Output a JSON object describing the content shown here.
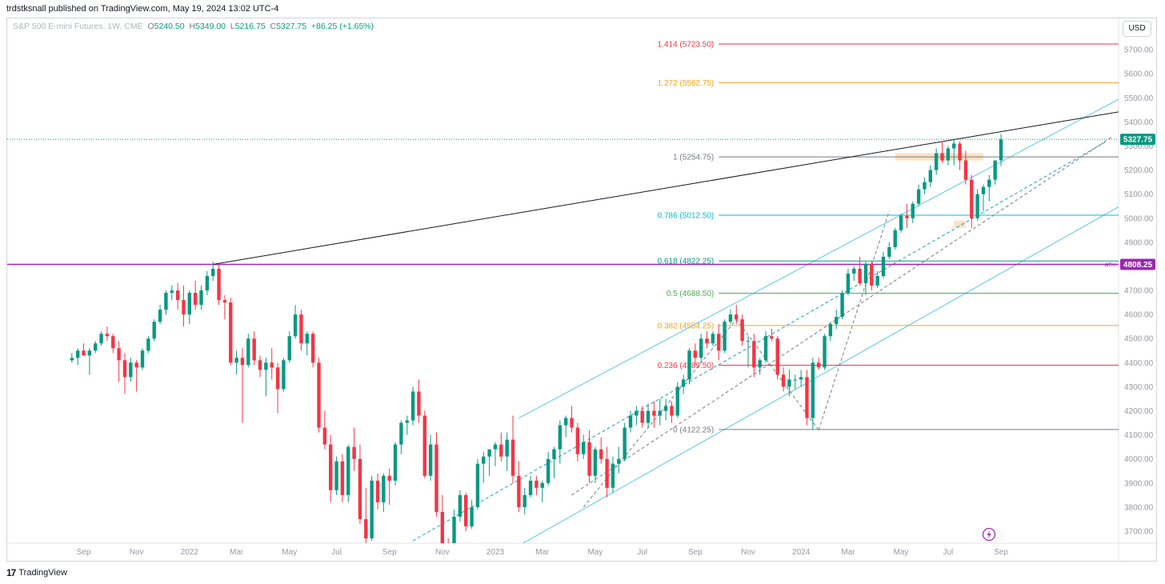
{
  "header": {
    "publisher_line": "trdstksnall published on TradingView.com, May 19, 2024 13:02 UTC-4"
  },
  "legend": {
    "symbol": "S&P 500 E-mini Futures, 1W, CME",
    "open_key": "O",
    "open": "5240.50",
    "high_key": "H",
    "high": "5349.00",
    "low_key": "L",
    "low": "5216.75",
    "close_key": "C",
    "close": "5327.75",
    "change": "+86.25 (+1.65%)"
  },
  "currency_button": "USD",
  "footer": {
    "logo_glyph": "17",
    "brand": "TradingView"
  },
  "colors": {
    "up": "#089981",
    "down": "#f23645",
    "ath": "#9c27b0",
    "trendline": "#131722",
    "channel": "#5bc8e8",
    "zone": "#fbc88f"
  },
  "chart_data": {
    "type": "candlestick",
    "price_axis": {
      "min": 3650,
      "max": 5830,
      "ticks": [
        3700,
        3800,
        3900,
        4000,
        4100,
        4200,
        4300,
        4400,
        4500,
        4600,
        4700,
        4800,
        4900,
        5000,
        5100,
        5200,
        5300,
        5400,
        5500,
        5600,
        5700
      ],
      "tick_labels": [
        "3700.00",
        "3800.00",
        "3900.00",
        "4000.00",
        "4100.00",
        "4200.00",
        "4300.00",
        "4400.00",
        "4500.00",
        "4600.00",
        "4700.00",
        "4800.00",
        "4900.00",
        "5000.00",
        "5100.00",
        "5200.00",
        "5300.00",
        "5400.00",
        "5500.00",
        "5600.00",
        "5700.00"
      ]
    },
    "time_axis": {
      "bar_range": [
        -11,
        178
      ],
      "labels": [
        {
          "bar": 2,
          "text": "Sep"
        },
        {
          "bar": 11,
          "text": "Nov"
        },
        {
          "bar": 20,
          "text": "2022"
        },
        {
          "bar": 28,
          "text": "Mar"
        },
        {
          "bar": 37,
          "text": "May"
        },
        {
          "bar": 45,
          "text": "Jul"
        },
        {
          "bar": 54,
          "text": "Sep"
        },
        {
          "bar": 63,
          "text": "Nov"
        },
        {
          "bar": 72,
          "text": "2023"
        },
        {
          "bar": 80,
          "text": "Mar"
        },
        {
          "bar": 89,
          "text": "May"
        },
        {
          "bar": 97,
          "text": "Jul"
        },
        {
          "bar": 106,
          "text": "Sep"
        },
        {
          "bar": 115,
          "text": "Nov"
        },
        {
          "bar": 124,
          "text": "2024"
        },
        {
          "bar": 132,
          "text": "Mar"
        },
        {
          "bar": 141,
          "text": "May"
        },
        {
          "bar": 149,
          "text": "Jul"
        },
        {
          "bar": 158,
          "text": "Sep"
        }
      ]
    },
    "candles": [
      [
        4410,
        4440,
        4400,
        4420
      ],
      [
        4420,
        4460,
        4390,
        4450
      ],
      [
        4450,
        4480,
        4430,
        4430
      ],
      [
        4430,
        4460,
        4350,
        4450
      ],
      [
        4450,
        4490,
        4440,
        4480
      ],
      [
        4480,
        4530,
        4470,
        4520
      ],
      [
        4520,
        4550,
        4490,
        4510
      ],
      [
        4510,
        4520,
        4440,
        4460
      ],
      [
        4460,
        4490,
        4320,
        4410
      ],
      [
        4410,
        4440,
        4270,
        4340
      ],
      [
        4340,
        4420,
        4320,
        4400
      ],
      [
        4400,
        4410,
        4280,
        4380
      ],
      [
        4380,
        4460,
        4370,
        4450
      ],
      [
        4450,
        4510,
        4440,
        4500
      ],
      [
        4500,
        4580,
        4490,
        4570
      ],
      [
        4570,
        4640,
        4560,
        4620
      ],
      [
        4620,
        4700,
        4600,
        4690
      ],
      [
        4690,
        4720,
        4660,
        4700
      ],
      [
        4700,
        4730,
        4620,
        4660
      ],
      [
        4660,
        4720,
        4550,
        4600
      ],
      [
        4600,
        4700,
        4560,
        4690
      ],
      [
        4690,
        4740,
        4620,
        4640
      ],
      [
        4640,
        4720,
        4620,
        4700
      ],
      [
        4700,
        4780,
        4680,
        4760
      ],
      [
        4760,
        4820,
        4740,
        4790
      ],
      [
        4790,
        4810,
        4640,
        4660
      ],
      [
        4660,
        4680,
        4580,
        4650
      ],
      [
        4650,
        4670,
        4390,
        4400
      ],
      [
        4400,
        4450,
        4350,
        4420
      ],
      [
        4420,
        4460,
        4150,
        4390
      ],
      [
        4390,
        4520,
        4380,
        4500
      ],
      [
        4500,
        4530,
        4390,
        4410
      ],
      [
        4410,
        4430,
        4340,
        4370
      ],
      [
        4370,
        4420,
        4260,
        4400
      ],
      [
        4400,
        4460,
        4330,
        4380
      ],
      [
        4380,
        4400,
        4190,
        4290
      ],
      [
        4290,
        4420,
        4280,
        4410
      ],
      [
        4410,
        4530,
        4400,
        4510
      ],
      [
        4510,
        4640,
        4500,
        4600
      ],
      [
        4600,
        4620,
        4450,
        4480
      ],
      [
        4480,
        4530,
        4430,
        4520
      ],
      [
        4520,
        4530,
        4380,
        4400
      ],
      [
        4400,
        4420,
        4110,
        4130
      ],
      [
        4130,
        4200,
        4040,
        4060
      ],
      [
        4060,
        4100,
        3820,
        3870
      ],
      [
        3870,
        4010,
        3850,
        3990
      ],
      [
        3990,
        4020,
        3820,
        3850
      ],
      [
        3850,
        4060,
        3820,
        4050
      ],
      [
        4050,
        4130,
        3950,
        4000
      ],
      [
        4000,
        4060,
        3730,
        3750
      ],
      [
        3750,
        3880,
        3640,
        3670
      ],
      [
        3670,
        3930,
        3660,
        3910
      ],
      [
        3910,
        3940,
        3790,
        3820
      ],
      [
        3820,
        3940,
        3780,
        3930
      ],
      [
        3930,
        3960,
        3810,
        3910
      ],
      [
        3910,
        4070,
        3890,
        4060
      ],
      [
        4060,
        4160,
        4020,
        4150
      ],
      [
        4150,
        4180,
        4100,
        4160
      ],
      [
        4160,
        4300,
        4140,
        4280
      ],
      [
        4280,
        4330,
        4150,
        4180
      ],
      [
        4180,
        4200,
        3920,
        3930
      ],
      [
        3930,
        4100,
        3910,
        4060
      ],
      [
        4060,
        4110,
        3760,
        3780
      ],
      [
        3780,
        3850,
        3630,
        3650
      ],
      [
        3650,
        3670,
        3590,
        3620
      ],
      [
        3620,
        3790,
        3600,
        3760
      ],
      [
        3760,
        3870,
        3740,
        3850
      ],
      [
        3850,
        3860,
        3700,
        3720
      ],
      [
        3720,
        3830,
        3710,
        3800
      ],
      [
        3800,
        4000,
        3790,
        3980
      ],
      [
        3980,
        4030,
        3900,
        4010
      ],
      [
        4010,
        4040,
        3930,
        4040
      ],
      [
        4040,
        4070,
        3970,
        4060
      ],
      [
        4060,
        4110,
        3990,
        4010
      ],
      [
        4010,
        4110,
        3950,
        4080
      ],
      [
        4080,
        4180,
        3900,
        3930
      ],
      [
        3930,
        3990,
        3780,
        3800
      ],
      [
        3800,
        3880,
        3770,
        3850
      ],
      [
        3850,
        3930,
        3840,
        3910
      ],
      [
        3910,
        3930,
        3850,
        3880
      ],
      [
        3880,
        3910,
        3820,
        3900
      ],
      [
        3900,
        4030,
        3890,
        4000
      ],
      [
        4000,
        4050,
        3920,
        4040
      ],
      [
        4040,
        4160,
        3980,
        4140
      ],
      [
        4140,
        4180,
        4090,
        4170
      ],
      [
        4170,
        4220,
        4110,
        4130
      ],
      [
        4130,
        4150,
        3990,
        4020
      ],
      [
        4020,
        4100,
        4000,
        4070
      ],
      [
        4070,
        4120,
        3900,
        3930
      ],
      [
        3930,
        4050,
        3900,
        4040
      ],
      [
        4040,
        4090,
        3980,
        4000
      ],
      [
        4000,
        4050,
        3840,
        3880
      ],
      [
        3880,
        4010,
        3860,
        3980
      ],
      [
        3980,
        4050,
        3940,
        4000
      ],
      [
        4000,
        4150,
        3990,
        4130
      ],
      [
        4130,
        4200,
        4110,
        4180
      ],
      [
        4180,
        4220,
        4140,
        4200
      ],
      [
        4200,
        4220,
        4130,
        4150
      ],
      [
        4150,
        4230,
        4130,
        4200
      ],
      [
        4200,
        4240,
        4130,
        4180
      ],
      [
        4180,
        4250,
        4140,
        4200
      ],
      [
        4200,
        4250,
        4160,
        4220
      ],
      [
        4220,
        4240,
        4150,
        4180
      ],
      [
        4180,
        4320,
        4170,
        4300
      ],
      [
        4300,
        4350,
        4270,
        4330
      ],
      [
        4330,
        4460,
        4310,
        4450
      ],
      [
        4450,
        4480,
        4390,
        4420
      ],
      [
        4420,
        4520,
        4400,
        4500
      ],
      [
        4500,
        4530,
        4460,
        4480
      ],
      [
        4480,
        4530,
        4470,
        4520
      ],
      [
        4520,
        4560,
        4410,
        4450
      ],
      [
        4450,
        4580,
        4440,
        4570
      ],
      [
        4570,
        4620,
        4560,
        4600
      ],
      [
        4600,
        4640,
        4560,
        4580
      ],
      [
        4580,
        4600,
        4470,
        4490
      ],
      [
        4490,
        4510,
        4380,
        4490
      ],
      [
        4490,
        4520,
        4340,
        4380
      ],
      [
        4380,
        4420,
        4350,
        4410
      ],
      [
        4410,
        4530,
        4400,
        4510
      ],
      [
        4510,
        4540,
        4490,
        4500
      ],
      [
        4500,
        4510,
        4330,
        4350
      ],
      [
        4350,
        4380,
        4280,
        4300
      ],
      [
        4300,
        4370,
        4260,
        4330
      ],
      [
        4330,
        4350,
        4290,
        4330
      ],
      [
        4330,
        4370,
        4300,
        4340
      ],
      [
        4340,
        4370,
        4140,
        4170
      ],
      [
        4170,
        4420,
        4120,
        4400
      ],
      [
        4400,
        4420,
        4370,
        4380
      ],
      [
        4380,
        4520,
        4370,
        4510
      ],
      [
        4510,
        4570,
        4490,
        4560
      ],
      [
        4560,
        4620,
        4540,
        4590
      ],
      [
        4590,
        4700,
        4580,
        4690
      ],
      [
        4690,
        4790,
        4680,
        4770
      ],
      [
        4770,
        4800,
        4740,
        4790
      ],
      [
        4790,
        4840,
        4720,
        4730
      ],
      [
        4730,
        4820,
        4680,
        4810
      ],
      [
        4810,
        4820,
        4700,
        4720
      ],
      [
        4720,
        4780,
        4710,
        4760
      ],
      [
        4760,
        4860,
        4750,
        4840
      ],
      [
        4840,
        4900,
        4830,
        4880
      ],
      [
        4880,
        4960,
        4870,
        4950
      ],
      [
        4950,
        5020,
        4940,
        5010
      ],
      [
        5010,
        5060,
        4960,
        5000
      ],
      [
        5000,
        5070,
        4980,
        5060
      ],
      [
        5060,
        5140,
        5050,
        5120
      ],
      [
        5120,
        5170,
        5100,
        5150
      ],
      [
        5150,
        5220,
        5130,
        5200
      ],
      [
        5200,
        5290,
        5180,
        5270
      ],
      [
        5270,
        5320,
        5230,
        5240
      ],
      [
        5240,
        5300,
        5220,
        5290
      ],
      [
        5290,
        5330,
        5220,
        5310
      ],
      [
        5310,
        5320,
        5200,
        5240
      ],
      [
        5240,
        5280,
        5140,
        5160
      ],
      [
        5160,
        5180,
        4960,
        5000
      ],
      [
        5000,
        5120,
        4990,
        5100
      ],
      [
        5100,
        5140,
        5030,
        5130
      ],
      [
        5130,
        5180,
        5070,
        5160
      ],
      [
        5160,
        5240,
        5140,
        5240
      ],
      [
        5240.5,
        5349,
        5216.75,
        5327.75
      ]
    ],
    "last_price": {
      "value": 5327.75,
      "label": "5327.75"
    },
    "ath": {
      "value": 4808.25,
      "label": "4808.25",
      "tag": "ATH"
    },
    "fibonacci": {
      "from_bar": 110,
      "to_bar": 180,
      "levels": [
        {
          "ratio": 1.414,
          "value": 5723.5,
          "label": "1.414 (5723.50)",
          "color": "#f23645"
        },
        {
          "ratio": 1.272,
          "value": 5562.75,
          "label": "1.272 (5562.75)",
          "color": "#f7a21b"
        },
        {
          "ratio": 1,
          "value": 5254.75,
          "label": "1 (5254.75)",
          "color": "#787b86"
        },
        {
          "ratio": 0.786,
          "value": 5012.5,
          "label": "0.786 (5012.50)",
          "color": "#00bcd4"
        },
        {
          "ratio": 0.618,
          "value": 4822.25,
          "label": "0.618 (4822.25)",
          "color": "#089981"
        },
        {
          "ratio": 0.5,
          "value": 4688.5,
          "label": "0.5 (4688.50)",
          "color": "#4caf50"
        },
        {
          "ratio": 0.382,
          "value": 4554.25,
          "label": "0.382 (4554.25)",
          "color": "#f7a21b"
        },
        {
          "ratio": 0.236,
          "value": 4389.5,
          "label": "0.236 (4389.50)",
          "color": "#f23645"
        },
        {
          "ratio": 0,
          "value": 4122.25,
          "label": "0 (4122.25)",
          "color": "#787b86"
        }
      ]
    },
    "trendline": {
      "from": [
        24,
        4808.25
      ],
      "to": [
        180,
        5450
      ]
    },
    "channel_lines": [
      {
        "from": [
          76,
          4170
        ],
        "to": [
          180,
          5520
        ]
      },
      {
        "from": [
          76,
          3640
        ],
        "to": [
          180,
          5075
        ]
      }
    ],
    "dashed_channel": [
      {
        "from": [
          58,
          3660
        ],
        "to": [
          176,
          5320
        ]
      },
      {
        "from": [
          85,
          3850
        ],
        "to": [
          177,
          5340
        ]
      }
    ],
    "zigzag": [
      [
        87,
        3800
      ],
      [
        113,
        4580
      ],
      [
        127,
        4120
      ],
      [
        139,
        5030
      ]
    ],
    "zones": [
      {
        "x0": 140,
        "x1": 155,
        "y0": 5240,
        "y1": 5270
      },
      {
        "x0": 150,
        "x1": 152,
        "y0": 4960,
        "y1": 4990
      }
    ]
  }
}
